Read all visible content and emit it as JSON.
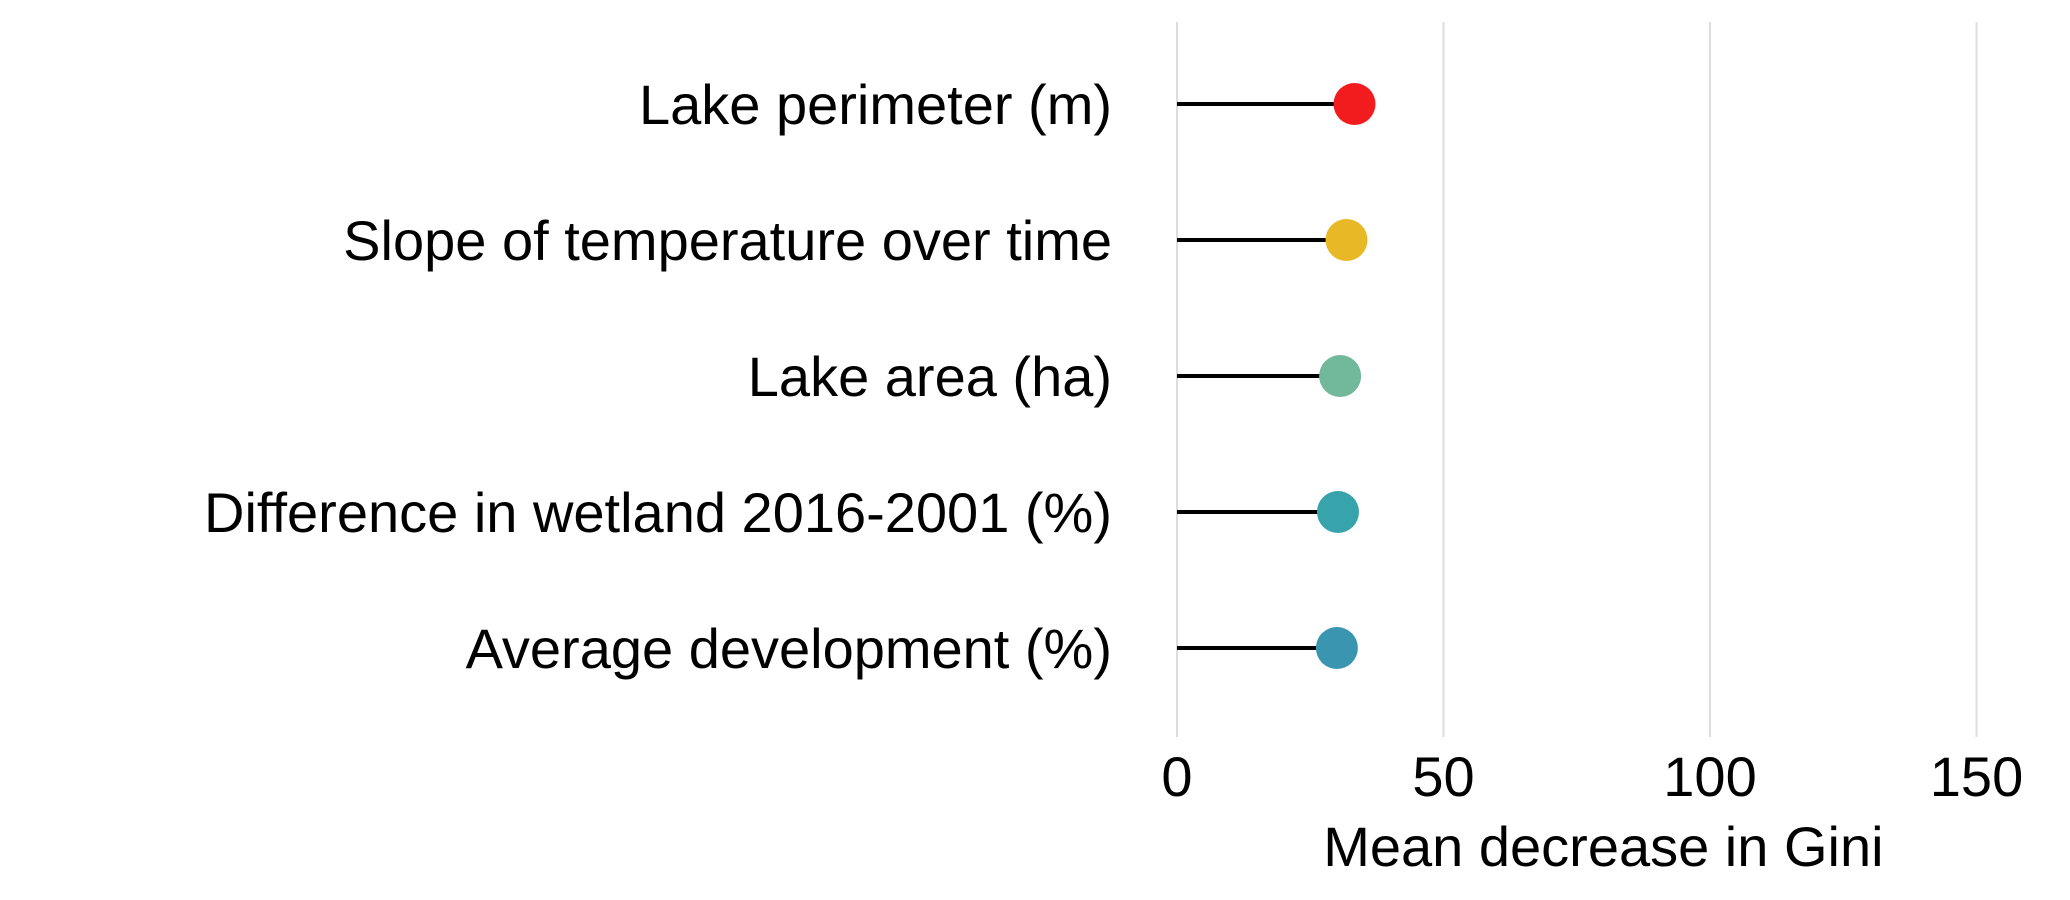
{
  "chart_data": {
    "type": "lollipop",
    "title": "",
    "xlabel": "Mean decrease in Gini",
    "ylabel": "",
    "xlim": [
      0,
      160
    ],
    "xticks": [
      0,
      50,
      100,
      150
    ],
    "xtick_labels": [
      "0",
      "50",
      "100",
      "150"
    ],
    "grid": "vertical-major",
    "legend": "none",
    "categories": [
      "Lake perimeter (m)",
      "Slope of temperature over time",
      "Lake area (ha)",
      "Difference in wetland 2016-2001 (%)",
      "Average development (%)"
    ],
    "values": [
      33.3,
      31.8,
      30.6,
      30.2,
      30.0
    ],
    "colors": [
      "#f21c1f",
      "#e8b826",
      "#72b89a",
      "#37a3aa",
      "#3a96b0"
    ]
  }
}
